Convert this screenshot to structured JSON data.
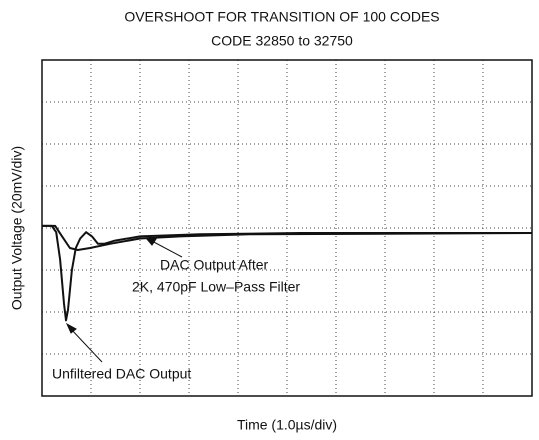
{
  "chart_data": {
    "type": "line",
    "title": "OVERSHOOT FOR TRANSITION OF 100 CODES",
    "subtitle": "CODE 32850 to 32750",
    "x_label": "Time (1.0µs/div)",
    "y_label": "Output Voltage (20mV/div)",
    "annotations": [
      "DAC Output After",
      "2K, 470pF Low–Pass Filter",
      "Unfiltered DAC Output"
    ],
    "xlim": [
      0,
      10
    ],
    "xticks": [
      0,
      1,
      2,
      3,
      4,
      5,
      6,
      7,
      8,
      9,
      10
    ],
    "ylim": [
      -80,
      80
    ],
    "yticks": [
      -80,
      -60,
      -40,
      -20,
      0,
      20,
      40,
      60,
      80
    ],
    "grid": true,
    "series": [
      {
        "color": "#111111",
        "x": [
          0,
          0.2,
          0.29,
          0.37,
          0.45,
          0.49,
          0.53,
          0.61,
          0.69,
          0.78,
          0.9,
          1.02,
          1.14,
          1.27,
          1.49,
          2.0,
          3.22,
          5.27,
          10
        ],
        "values": [
          1,
          1,
          -2,
          -15,
          -36,
          -44,
          -39,
          -20,
          -9.5,
          -5,
          -2,
          -4,
          -7.5,
          -7.5,
          -6,
          -4,
          -3,
          -2.4,
          -2.4
        ]
      },
      {
        "color": "#111111",
        "x": [
          0,
          0.27,
          0.41,
          0.57,
          0.73,
          0.98,
          1.39,
          2.0,
          2.82,
          4.24,
          10
        ],
        "values": [
          1,
          1,
          -4,
          -9.5,
          -10.5,
          -9.5,
          -7.5,
          -5,
          -4,
          -3,
          -2.4
        ]
      }
    ]
  }
}
